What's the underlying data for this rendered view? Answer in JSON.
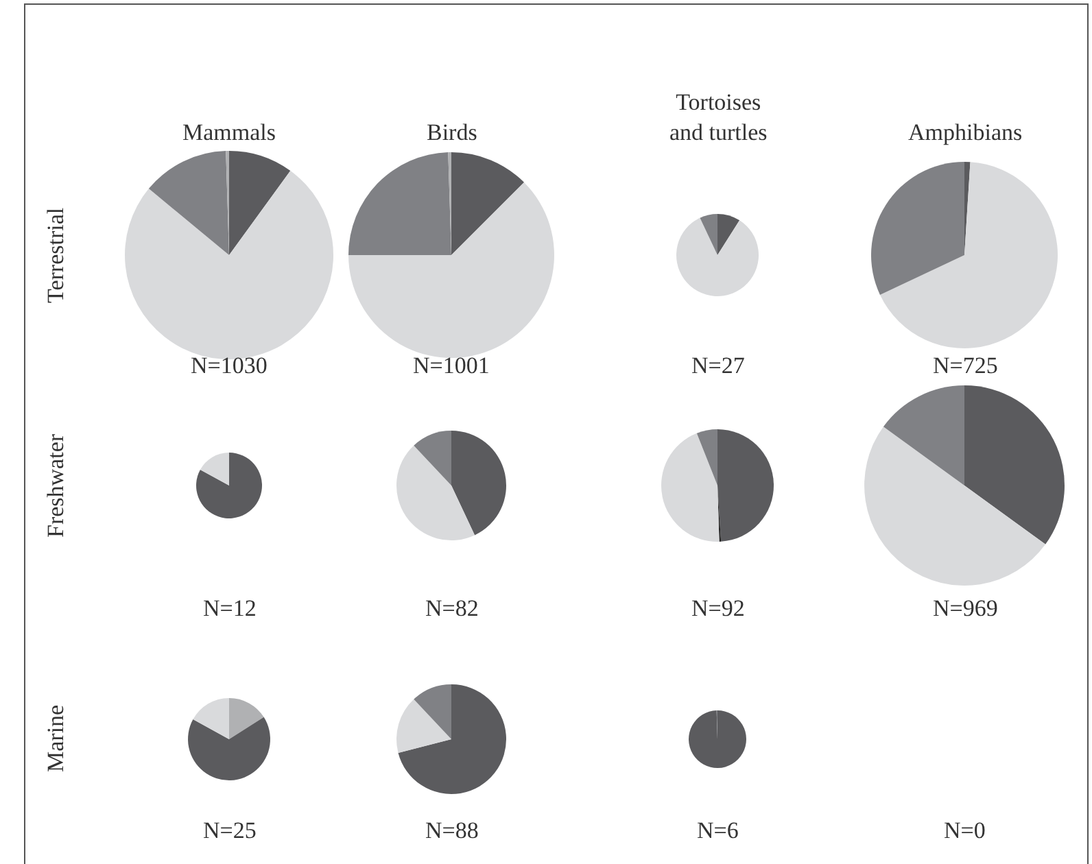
{
  "chart_data": [
    {
      "type": "pie",
      "title": "Mammals",
      "ylabel": "Terrestrial",
      "categories": [
        null,
        null,
        null,
        null
      ],
      "values": [
        10,
        76,
        13.5,
        0.5
      ],
      "colors": [
        "#5b5b5e",
        "#d9dadc",
        "#808185",
        "#b0b1b3"
      ],
      "annotations": [
        "N=1030"
      ]
    },
    {
      "type": "pie",
      "title": "Birds",
      "categories": [
        null,
        null,
        null,
        null
      ],
      "values": [
        12.5,
        62.5,
        24.5,
        0.5
      ],
      "colors": [
        "#5b5b5e",
        "#d9dadc",
        "#808185",
        "#b0b1b3"
      ],
      "annotations": [
        "N=1001"
      ]
    },
    {
      "type": "pie",
      "title": "Tortoises\nand turtles",
      "categories": [
        null,
        null,
        null
      ],
      "values": [
        9,
        84,
        7
      ],
      "colors": [
        "#5b5b5e",
        "#d9dadc",
        "#808185"
      ],
      "annotations": [
        "N=27"
      ]
    },
    {
      "type": "pie",
      "title": "Amphibians",
      "categories": [
        null,
        null,
        null
      ],
      "values": [
        1,
        67,
        32
      ],
      "colors": [
        "#5b5b5e",
        "#d9dadc",
        "#808185"
      ],
      "annotations": [
        "N=725"
      ]
    },
    {
      "type": "pie",
      "ylabel": "Freshwater",
      "categories": [
        null,
        null
      ],
      "values": [
        83,
        17
      ],
      "colors": [
        "#5b5b5e",
        "#d9dadc"
      ],
      "annotations": [
        "N=12"
      ]
    },
    {
      "type": "pie",
      "categories": [
        null,
        null,
        null
      ],
      "values": [
        43,
        45,
        12
      ],
      "colors": [
        "#5b5b5e",
        "#d9dadc",
        "#808185"
      ],
      "annotations": [
        "N=82"
      ]
    },
    {
      "type": "pie",
      "categories": [
        null,
        null,
        null,
        null
      ],
      "values": [
        49,
        0.5,
        44.5,
        6
      ],
      "colors": [
        "#5b5b5e",
        "#222222",
        "#d9dadc",
        "#808185"
      ],
      "annotations": [
        "N=92"
      ]
    },
    {
      "type": "pie",
      "categories": [
        null,
        null,
        null
      ],
      "values": [
        35,
        50,
        15
      ],
      "colors": [
        "#5b5b5e",
        "#d9dadc",
        "#808185"
      ],
      "annotations": [
        "N=969"
      ]
    },
    {
      "type": "pie",
      "ylabel": "Marine",
      "categories": [
        null,
        null,
        null
      ],
      "values": [
        16,
        67,
        17
      ],
      "colors": [
        "#b0b1b3",
        "#5b5b5e",
        "#d9dadc"
      ],
      "annotations": [
        "N=25"
      ]
    },
    {
      "type": "pie",
      "categories": [
        null,
        null,
        null
      ],
      "values": [
        71,
        17,
        12
      ],
      "colors": [
        "#5b5b5e",
        "#d9dadc",
        "#808185"
      ],
      "annotations": [
        "N=88"
      ]
    },
    {
      "type": "pie",
      "categories": [
        null,
        null
      ],
      "values": [
        99.5,
        0.5
      ],
      "colors": [
        "#5b5b5e",
        "#808185"
      ],
      "annotations": [
        "N=6"
      ]
    },
    {
      "type": "other",
      "annotations": [
        "N=0"
      ]
    }
  ]
}
